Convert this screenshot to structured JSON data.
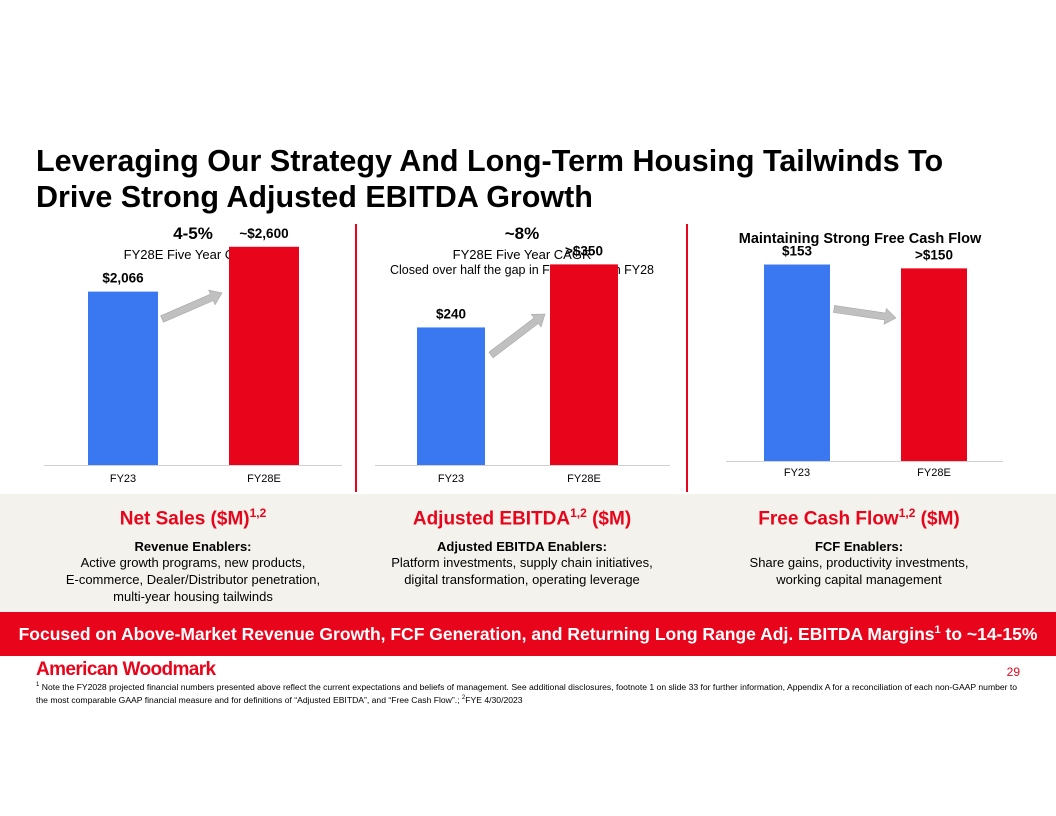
{
  "title_line1": "Leveraging Our Strategy And Long-Term Housing Tailwinds To",
  "title_line2": "Drive Strong Adjusted EBITDA Growth",
  "chart_data": [
    {
      "type": "bar",
      "categories": [
        "FY23",
        "FY28E"
      ],
      "values": [
        2066,
        2600
      ],
      "data_labels": [
        "$2,066",
        "~$2,600"
      ],
      "ylim": [
        0,
        2800
      ],
      "colors": [
        "#3a78f2",
        "#e8051b"
      ],
      "header": "4-5%",
      "subheader": "FY28E Five Year CAGR",
      "subheader2": ""
    },
    {
      "type": "bar",
      "categories": [
        "FY23",
        "FY28E"
      ],
      "values": [
        240,
        350
      ],
      "data_labels": [
        "$240",
        ">$350"
      ],
      "ylim": [
        0,
        410
      ],
      "colors": [
        "#3a78f2",
        "#e8051b"
      ],
      "header": "~8%",
      "subheader": "FY28E Five Year CAGR",
      "subheader2": "Closed over half the gap in FY23 to reach FY28"
    },
    {
      "type": "bar",
      "categories": [
        "FY23",
        "FY28E"
      ],
      "values": [
        153,
        150
      ],
      "data_labels": [
        "$153",
        ">$150"
      ],
      "ylim": [
        0,
        183
      ],
      "colors": [
        "#3a78f2",
        "#e8051b"
      ],
      "header": "Maintaining Strong Free Cash Flow"
    }
  ],
  "metrics": [
    {
      "title": "Net Sales ($M)",
      "sup": "1,2",
      "title_suffix": "",
      "enablers_label": "Revenue Enablers:",
      "body": [
        "Active growth programs, new products,",
        "E-commerce, Dealer/Distributor penetration,",
        "multi-year housing tailwinds"
      ]
    },
    {
      "title": "Adjusted EBITDA",
      "sup": "1,2",
      "title_suffix": " ($M)",
      "enablers_label": "Adjusted EBITDA Enablers:",
      "body": [
        "Platform investments, supply chain initiatives,",
        "digital transformation, operating leverage"
      ]
    },
    {
      "title": "Free Cash Flow",
      "sup": "1,2",
      "title_suffix": " ($M)",
      "enablers_label": "FCF Enablers:",
      "body": [
        "Share gains, productivity investments,",
        "working capital management"
      ]
    }
  ],
  "banner": {
    "text": "Focused on Above-Market Revenue Growth, FCF Generation, and Returning Long Range Adj. EBITDA Margins",
    "sup": "1",
    "suffix": " to ~14-15%"
  },
  "logo": "American Woodmark",
  "page_number": "29",
  "footnote": {
    "sup1": "1",
    "text1": " Note the FY2028 projected financial numbers presented above reflect the current expectations and beliefs of management. See additional disclosures, footnote 1 on slide 33 for further information, Appendix A for a reconciliation of each non-GAAP number to the most comparable GAAP financial measure and for definitions of “Adjusted EBITDA”, and “Free Cash Flow”.; ",
    "sup2": "2",
    "text2": "FYE 4/30/2023"
  },
  "colors": {
    "accent": "#e8051b",
    "bar_blue": "#3a78f2",
    "arrow_gray": "#c0c0c0",
    "band_bg": "#f4f2ec"
  }
}
